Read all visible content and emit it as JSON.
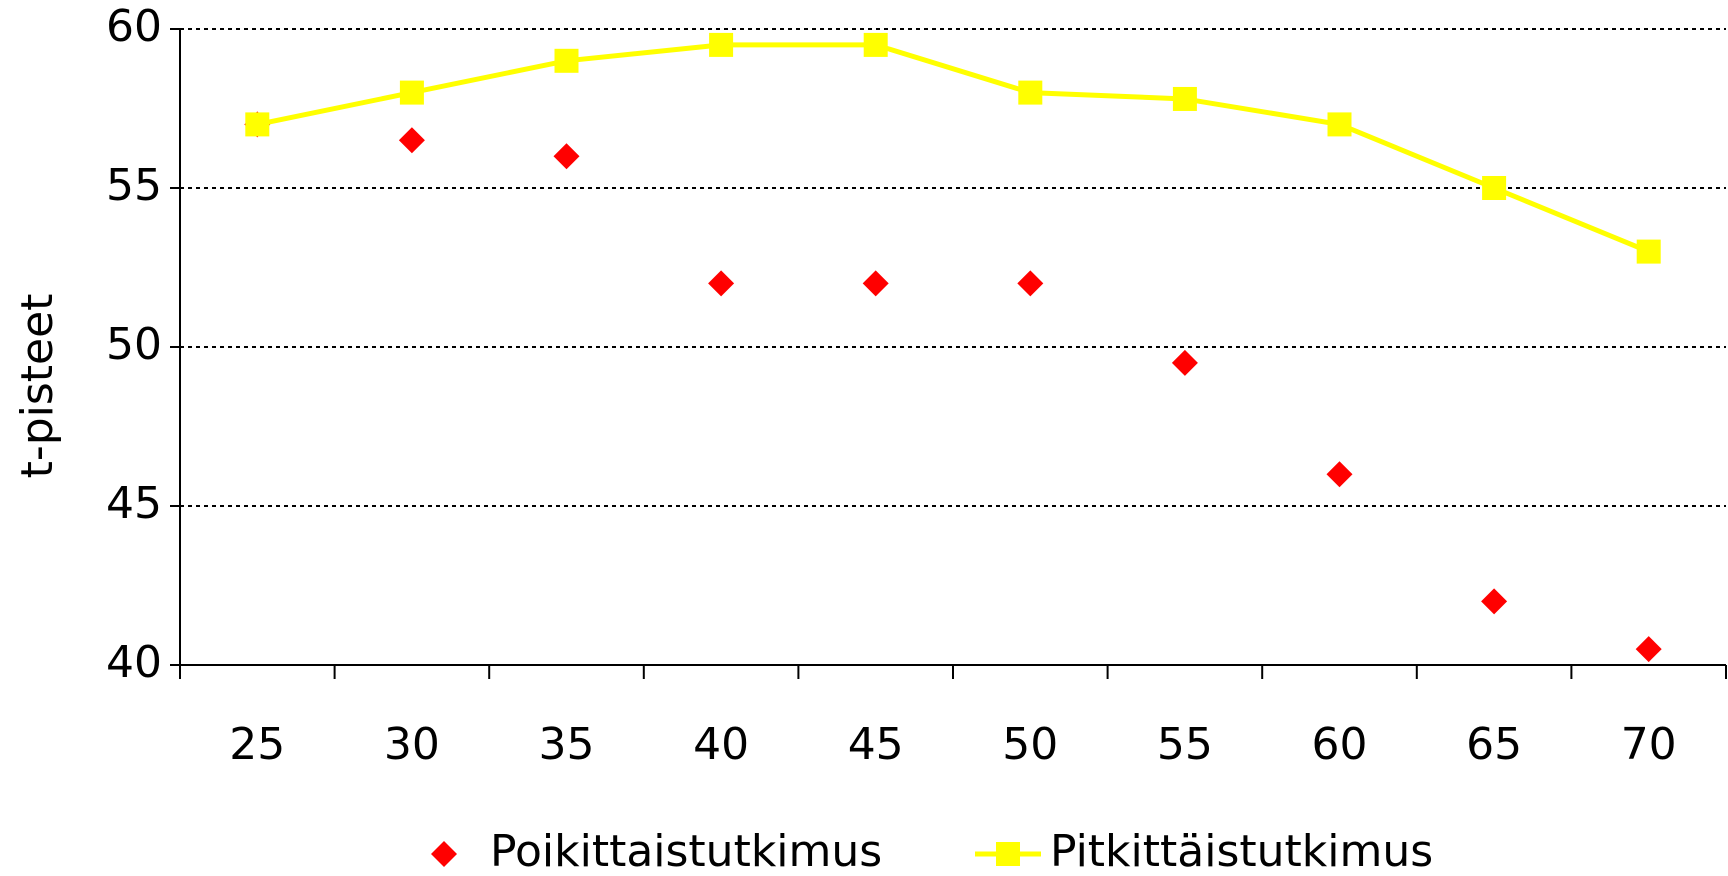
{
  "chart_data": {
    "type": "line",
    "y_label": "t-pisteet",
    "categories": [
      "25",
      "30",
      "35",
      "40",
      "45",
      "50",
      "55",
      "60",
      "65",
      "70"
    ],
    "series": [
      {
        "name": "Poikittaistutkimus",
        "color": "#ff0000",
        "marker": "diamond",
        "line": false,
        "values": [
          57,
          56.5,
          56,
          52,
          52,
          52,
          49.5,
          46,
          42,
          40.5
        ]
      },
      {
        "name": "Pitkittäistutkimus",
        "color": "#ffff00",
        "marker": "square",
        "line": true,
        "values": [
          57,
          58,
          59,
          59.5,
          59.5,
          58,
          57.8,
          57,
          55,
          53
        ]
      }
    ],
    "ylim": [
      40,
      60
    ],
    "yticks": [
      40,
      45,
      50,
      55,
      60
    ],
    "grid": true,
    "legend": "bottom"
  }
}
